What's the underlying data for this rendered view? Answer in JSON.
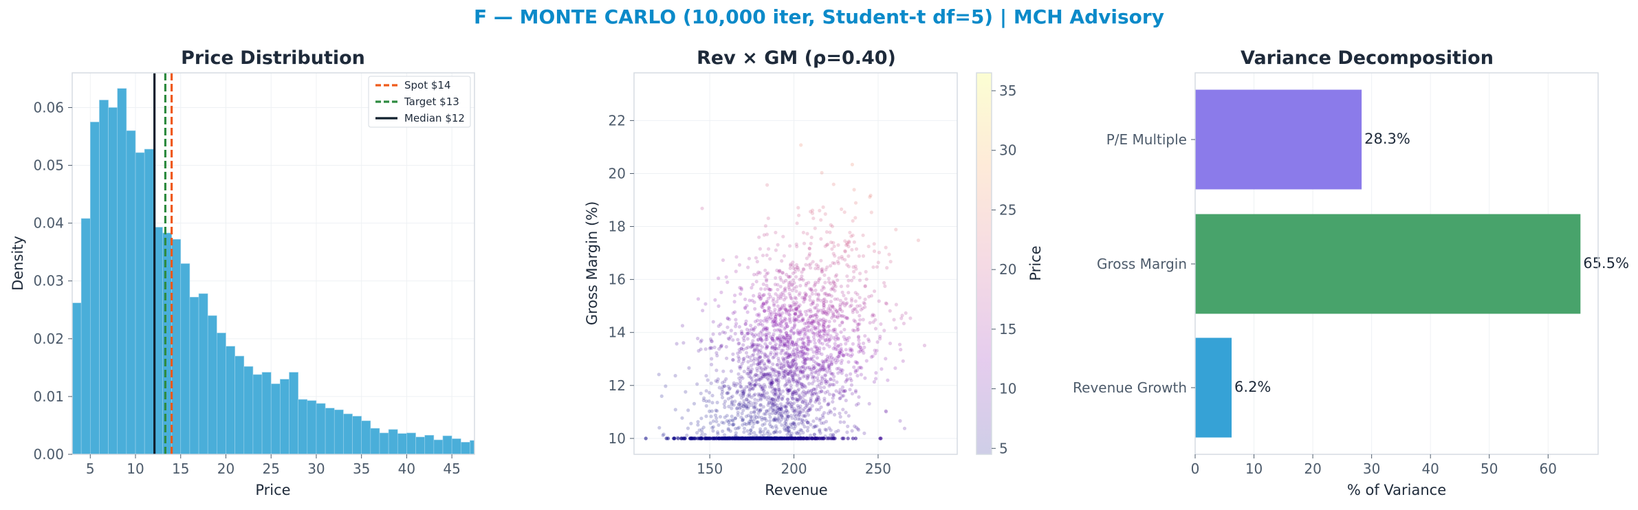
{
  "suptitle": "F — MONTE CARLO (10,000 iter, Student-t df=5) | MCH Advisory",
  "colors": {
    "hist": "#4aaed9",
    "spot": "#ef5a1a",
    "target": "#2e8b40",
    "median": "#10202e",
    "pe": "#8b7bea",
    "gm": "#48a36b",
    "rev": "#36a2d6"
  },
  "chart_data": [
    {
      "type": "bar",
      "subtype": "histogram",
      "title": "Price Distribution",
      "xlabel": "Price",
      "ylabel": "Density",
      "xlim": [
        3,
        47.5
      ],
      "ylim": [
        0,
        0.066
      ],
      "xticks": [
        5,
        10,
        15,
        20,
        25,
        30,
        35,
        40,
        45
      ],
      "yticks": [
        0.0,
        0.01,
        0.02,
        0.03,
        0.04,
        0.05,
        0.06
      ],
      "ytick_labels": [
        "0.00",
        "0.01",
        "0.02",
        "0.03",
        "0.04",
        "0.05",
        "0.06"
      ],
      "bin_start": 3.0,
      "bin_width": 1.0,
      "densities": [
        0.0262,
        0.0408,
        0.0575,
        0.0613,
        0.06,
        0.0633,
        0.056,
        0.0522,
        0.0528,
        0.0393,
        0.0383,
        0.0372,
        0.033,
        0.0272,
        0.0278,
        0.024,
        0.021,
        0.0187,
        0.017,
        0.0152,
        0.0138,
        0.0142,
        0.0122,
        0.013,
        0.0142,
        0.0095,
        0.0093,
        0.0088,
        0.008,
        0.0077,
        0.007,
        0.0066,
        0.0058,
        0.0045,
        0.0037,
        0.0043,
        0.0036,
        0.0037,
        0.003,
        0.0033,
        0.0025,
        0.0032,
        0.0027,
        0.0021,
        0.0024
      ],
      "vlines": [
        {
          "name": "Spot $14",
          "x": 14.0,
          "style": "dashed",
          "color": "#ef5a1a"
        },
        {
          "name": "Target $13",
          "x": 13.3,
          "style": "dashed",
          "color": "#2e8b40"
        },
        {
          "name": "Median $12",
          "x": 12.1,
          "style": "solid",
          "color": "#10202e"
        }
      ],
      "legend": "top-right",
      "grid": true
    },
    {
      "type": "scatter",
      "title": "Rev × GM (ρ=0.40)",
      "xlabel": "Revenue",
      "ylabel": "Gross Margin (%)",
      "xlim": [
        105,
        297
      ],
      "ylim": [
        9.4,
        23.8
      ],
      "xticks": [
        150,
        200,
        250
      ],
      "yticks": [
        10,
        12,
        14,
        16,
        18,
        20,
        22
      ],
      "points": 10000,
      "x_mean": 195,
      "x_sd": 25,
      "y_mean": 12.5,
      "y_sd": 2.5,
      "y_floor": 10,
      "correlation": 0.4,
      "colorbar": {
        "label": "Price",
        "min": 4.5,
        "max": 36.5,
        "ticks": [
          5,
          10,
          15,
          20,
          25,
          30,
          35
        ],
        "colormap": "plasma"
      },
      "grid": true
    },
    {
      "type": "bar",
      "orientation": "horizontal",
      "title": "Variance Decomposition",
      "xlabel": "% of Variance",
      "xlim": [
        0,
        68.5
      ],
      "xticks": [
        0,
        10,
        20,
        30,
        40,
        50,
        60
      ],
      "categories": [
        "P/E Multiple",
        "Gross Margin",
        "Revenue Growth"
      ],
      "values": [
        28.3,
        65.5,
        6.2
      ],
      "value_labels": [
        "28.3%",
        "65.5%",
        "6.2%"
      ],
      "grid": true
    }
  ]
}
